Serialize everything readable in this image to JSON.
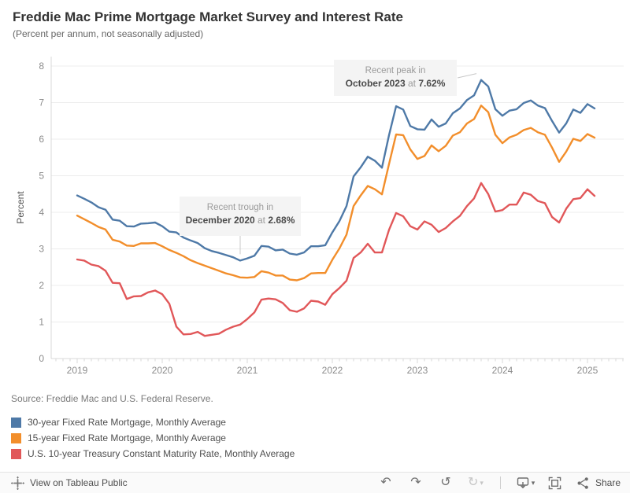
{
  "header": {
    "title": "Freddie Mac Prime Mortgage Market Survey and Interest Rate",
    "subtitle": "(Percent per annum, not seasonally adjusted)"
  },
  "source_note": "Source: Freddie Mac and U.S. Federal Reserve.",
  "chart_data": {
    "type": "line",
    "title": "Freddie Mac Prime Mortgage Market Survey and Interest Rate",
    "subtitle": "(Percent per annum, not seasonally adjusted)",
    "xlabel": "",
    "ylabel": "Percent",
    "ylim": [
      0,
      8
    ],
    "yticks": [
      0,
      1,
      2,
      3,
      4,
      5,
      6,
      7,
      8
    ],
    "xticks": [
      "2019",
      "2020",
      "2021",
      "2022",
      "2023",
      "2024",
      "2025"
    ],
    "grid": true,
    "legend_position": "bottom-left",
    "frequency": "monthly",
    "x": [
      "2019-01",
      "2019-02",
      "2019-03",
      "2019-04",
      "2019-05",
      "2019-06",
      "2019-07",
      "2019-08",
      "2019-09",
      "2019-10",
      "2019-11",
      "2019-12",
      "2020-01",
      "2020-02",
      "2020-03",
      "2020-04",
      "2020-05",
      "2020-06",
      "2020-07",
      "2020-08",
      "2020-09",
      "2020-10",
      "2020-11",
      "2020-12",
      "2021-01",
      "2021-02",
      "2021-03",
      "2021-04",
      "2021-05",
      "2021-06",
      "2021-07",
      "2021-08",
      "2021-09",
      "2021-10",
      "2021-11",
      "2021-12",
      "2022-01",
      "2022-02",
      "2022-03",
      "2022-04",
      "2022-05",
      "2022-06",
      "2022-07",
      "2022-08",
      "2022-09",
      "2022-10",
      "2022-11",
      "2022-12",
      "2023-01",
      "2023-02",
      "2023-03",
      "2023-04",
      "2023-05",
      "2023-06",
      "2023-07",
      "2023-08",
      "2023-09",
      "2023-10",
      "2023-11",
      "2023-12",
      "2024-01",
      "2024-02",
      "2024-03",
      "2024-04",
      "2024-05",
      "2024-06",
      "2024-07",
      "2024-08",
      "2024-09",
      "2024-10",
      "2024-11",
      "2024-12",
      "2025-01",
      "2025-02"
    ],
    "series": [
      {
        "name": "30-year Fixed Rate Mortgage, Monthly Average",
        "color": "#4e79a7",
        "values": [
          4.46,
          4.37,
          4.27,
          4.14,
          4.07,
          3.8,
          3.77,
          3.62,
          3.61,
          3.69,
          3.7,
          3.72,
          3.62,
          3.47,
          3.45,
          3.31,
          3.23,
          3.16,
          3.02,
          2.94,
          2.89,
          2.83,
          2.77,
          2.68,
          2.74,
          2.81,
          3.08,
          3.06,
          2.96,
          2.98,
          2.87,
          2.84,
          2.9,
          3.07,
          3.07,
          3.1,
          3.45,
          3.76,
          4.17,
          4.98,
          5.23,
          5.52,
          5.41,
          5.22,
          6.11,
          6.9,
          6.81,
          6.36,
          6.27,
          6.26,
          6.54,
          6.34,
          6.43,
          6.71,
          6.84,
          7.07,
          7.2,
          7.62,
          7.44,
          6.82,
          6.64,
          6.78,
          6.82,
          6.99,
          7.06,
          6.92,
          6.85,
          6.5,
          6.18,
          6.43,
          6.81,
          6.72,
          6.96,
          6.84
        ]
      },
      {
        "name": "15-year Fixed Rate Mortgage, Monthly Average",
        "color": "#f28e2b",
        "values": [
          3.91,
          3.81,
          3.71,
          3.6,
          3.53,
          3.25,
          3.2,
          3.09,
          3.08,
          3.15,
          3.15,
          3.16,
          3.07,
          2.97,
          2.89,
          2.8,
          2.69,
          2.61,
          2.54,
          2.47,
          2.4,
          2.33,
          2.28,
          2.22,
          2.21,
          2.23,
          2.39,
          2.35,
          2.27,
          2.27,
          2.16,
          2.14,
          2.2,
          2.33,
          2.34,
          2.34,
          2.7,
          3.01,
          3.39,
          4.17,
          4.46,
          4.72,
          4.63,
          4.49,
          5.32,
          6.13,
          6.11,
          5.72,
          5.46,
          5.54,
          5.83,
          5.67,
          5.82,
          6.1,
          6.19,
          6.43,
          6.55,
          6.92,
          6.74,
          6.12,
          5.89,
          6.05,
          6.12,
          6.25,
          6.31,
          6.19,
          6.12,
          5.77,
          5.38,
          5.66,
          6.01,
          5.95,
          6.14,
          6.04
        ]
      },
      {
        "name": "U.S. 10-year Treasury Constant Maturity Rate, Monthly Average",
        "color": "#e15759",
        "values": [
          2.71,
          2.68,
          2.57,
          2.53,
          2.4,
          2.07,
          2.06,
          1.63,
          1.7,
          1.71,
          1.81,
          1.86,
          1.76,
          1.5,
          0.87,
          0.66,
          0.67,
          0.73,
          0.62,
          0.65,
          0.68,
          0.79,
          0.87,
          0.93,
          1.08,
          1.26,
          1.61,
          1.64,
          1.62,
          1.52,
          1.32,
          1.28,
          1.37,
          1.58,
          1.56,
          1.47,
          1.76,
          1.93,
          2.13,
          2.75,
          2.9,
          3.14,
          2.9,
          2.9,
          3.52,
          3.98,
          3.89,
          3.62,
          3.53,
          3.75,
          3.66,
          3.46,
          3.57,
          3.75,
          3.9,
          4.17,
          4.38,
          4.8,
          4.5,
          4.02,
          4.06,
          4.21,
          4.21,
          4.54,
          4.48,
          4.31,
          4.25,
          3.87,
          3.72,
          4.1,
          4.36,
          4.39,
          4.63,
          4.45
        ]
      }
    ],
    "annotations": [
      {
        "id": "peak",
        "line1": "Recent peak in",
        "bold1": "October 2023",
        "mid": " at ",
        "bold2": "7.62%",
        "anchor_month": "2023-10",
        "anchor_value": 7.62
      },
      {
        "id": "trough",
        "line1": "Recent trough in",
        "bold1": "December 2020",
        "mid": " at ",
        "bold2": "2.68%",
        "anchor_month": "2020-12",
        "anchor_value": 2.68
      }
    ]
  },
  "legend": {
    "items": [
      {
        "label": "30-year Fixed Rate Mortgage, Monthly Average",
        "color": "#4e79a7"
      },
      {
        "label": "15-year Fixed Rate Mortgage, Monthly Average",
        "color": "#f28e2b"
      },
      {
        "label": "U.S. 10-year Treasury Constant Maturity Rate, Monthly Average",
        "color": "#e15759"
      }
    ]
  },
  "toolbar": {
    "view_on_label": "View on Tableau Public",
    "share_label": "Share",
    "icons": {
      "undo": "↶",
      "redo": "↷",
      "reset": "↺",
      "refresh": "↻",
      "caret": "▾"
    }
  },
  "colors": {
    "axis_text": "#8b8b8b",
    "grid": "#ececec",
    "axis_line": "#d9d9d9",
    "annotation_bg": "#f4f4f4",
    "connector": "#c8c8c8"
  }
}
